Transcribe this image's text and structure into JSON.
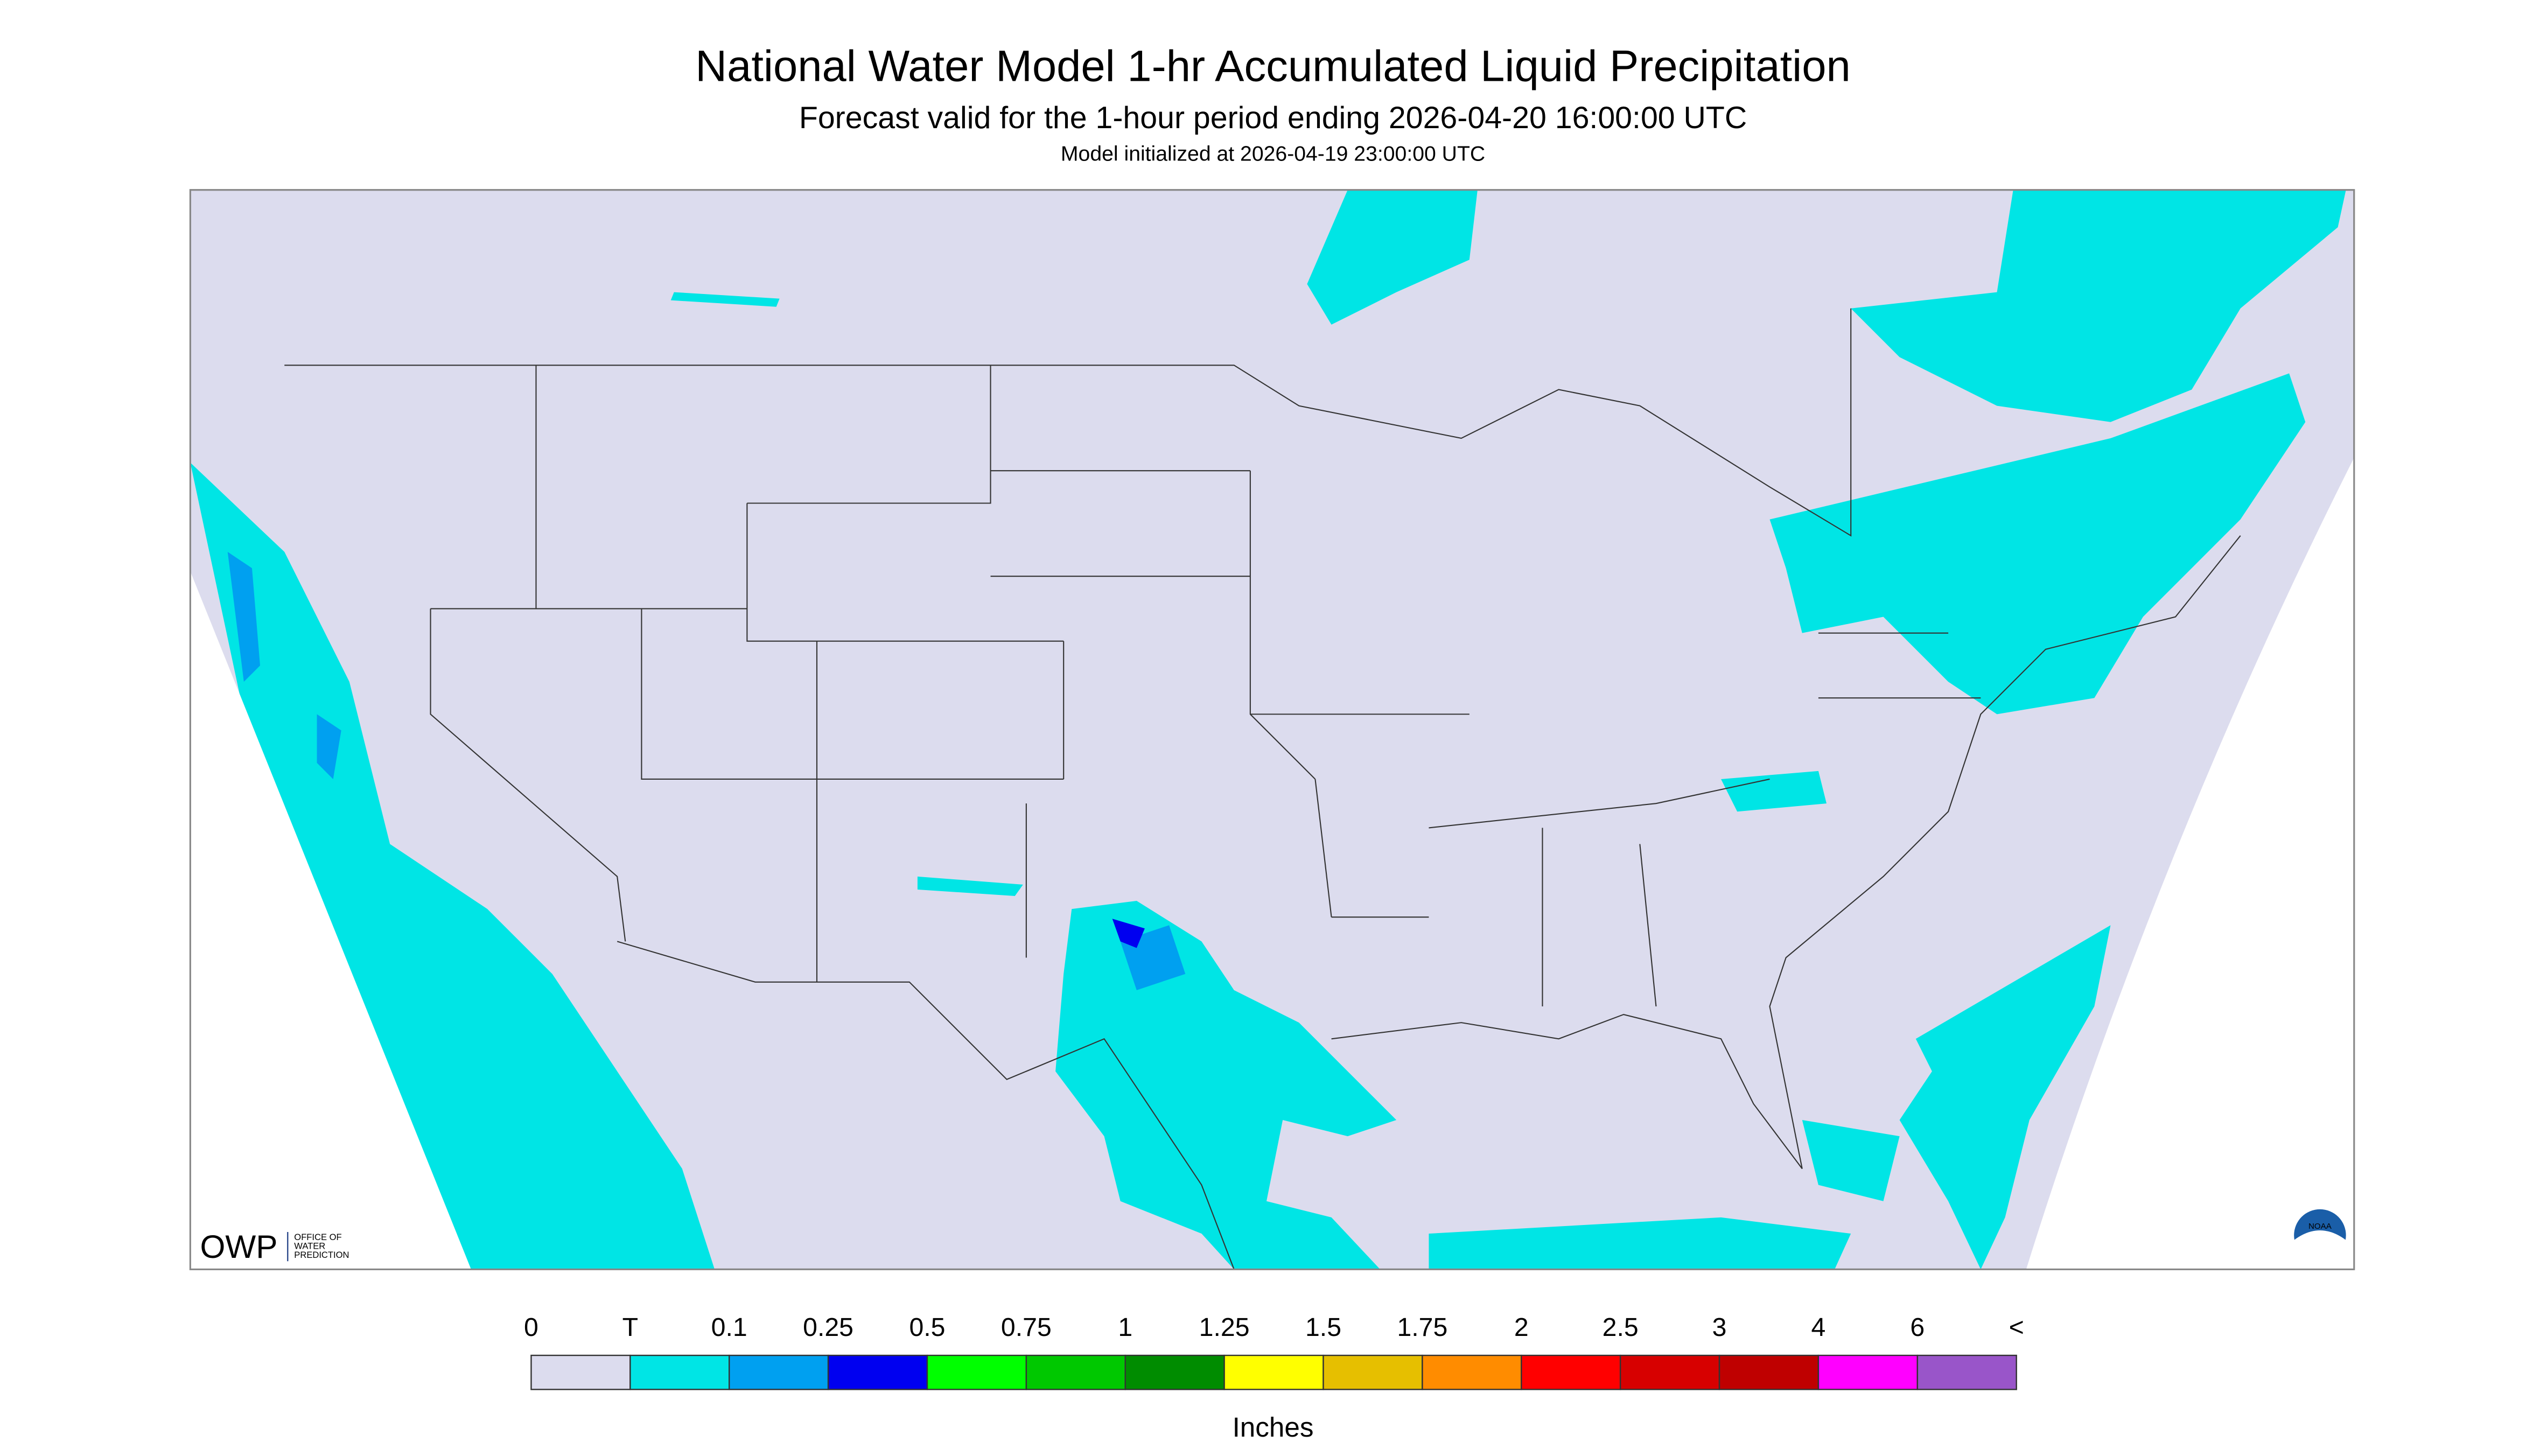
{
  "header": {
    "title": "National Water Model 1-hr Accumulated Liquid Precipitation",
    "subtitle": "Forecast valid for the 1-hour period ending 2026-04-20 16:00:00 UTC",
    "init": "Model initialized at 2026-04-19 23:00:00 UTC"
  },
  "logos": {
    "owp": "OWP",
    "owp_lines": [
      "OFFICE OF",
      "WATER",
      "PREDICTION"
    ],
    "noaa": "NOAA"
  },
  "legend": {
    "labels": [
      "0",
      "T",
      "0.1",
      "0.25",
      "0.5",
      "0.75",
      "1",
      "1.25",
      "1.5",
      "1.75",
      "2",
      "2.5",
      "3",
      "4",
      "6",
      "<"
    ],
    "colors": [
      "#dcdcee",
      "#00e5e5",
      "#00a0f0",
      "#0000f0",
      "#00ff00",
      "#00c800",
      "#008c00",
      "#ffff00",
      "#e6bf00",
      "#ff8c00",
      "#ff0000",
      "#d70000",
      "#bf0000",
      "#ff00ff",
      "#9955c9"
    ],
    "units": "Inches"
  }
}
